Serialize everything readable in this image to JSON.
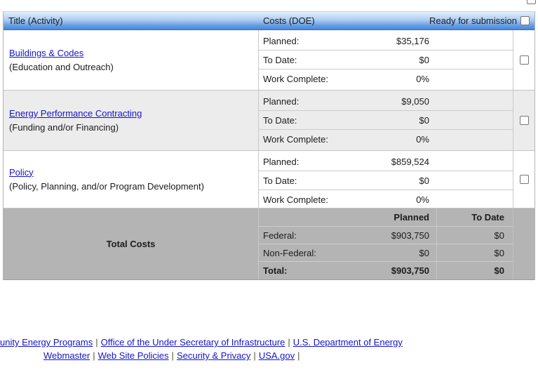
{
  "header": {
    "title_col": "Title (Activity)",
    "costs_col": "Costs (DOE)",
    "ready_label": "Ready for submission"
  },
  "cost_labels": {
    "planned": "Planned:",
    "to_date": "To Date:",
    "work_complete": "Work Complete:"
  },
  "activities": [
    {
      "title": "Buildings & Codes",
      "subtitle": "(Education and Outreach)",
      "planned": "$35,176",
      "to_date": "$0",
      "work_complete": "0%"
    },
    {
      "title": "Energy Performance Contracting",
      "subtitle": "(Funding and/or Financing)",
      "planned": "$9,050",
      "to_date": "$0",
      "work_complete": "0%"
    },
    {
      "title": "Policy",
      "subtitle": "(Policy, Planning, and/or Program Development)",
      "planned": "$859,524",
      "to_date": "$0",
      "work_complete": "0%"
    }
  ],
  "totals": {
    "label": "Total Costs",
    "col_planned": "Planned",
    "col_to_date": "To Date",
    "federal": {
      "label": "Federal:",
      "planned": "$903,750",
      "to_date": "$0"
    },
    "non_federal": {
      "label": "Non-Federal:",
      "planned": "$0",
      "to_date": "$0"
    },
    "total": {
      "label": "Total:",
      "planned": "$903,750",
      "to_date": "$0"
    }
  },
  "footer": {
    "separator": "|",
    "line1": {
      "link1": "unity Energy Programs",
      "link2": "Office of the Under Secretary of Infrastructure",
      "link3": "U.S. Department of Energy"
    },
    "line2": {
      "link1": "Webmaster",
      "link2": "Web Site Policies",
      "link3": "Security & Privacy",
      "link4": "USA.gov"
    }
  },
  "colors": {
    "link": "#1414cd",
    "header_gradient_top": "#e2effd",
    "header_gradient_bottom": "#4787dd",
    "row_alt_bg": "#ececec",
    "totals_bg": "#b4b4b4"
  }
}
